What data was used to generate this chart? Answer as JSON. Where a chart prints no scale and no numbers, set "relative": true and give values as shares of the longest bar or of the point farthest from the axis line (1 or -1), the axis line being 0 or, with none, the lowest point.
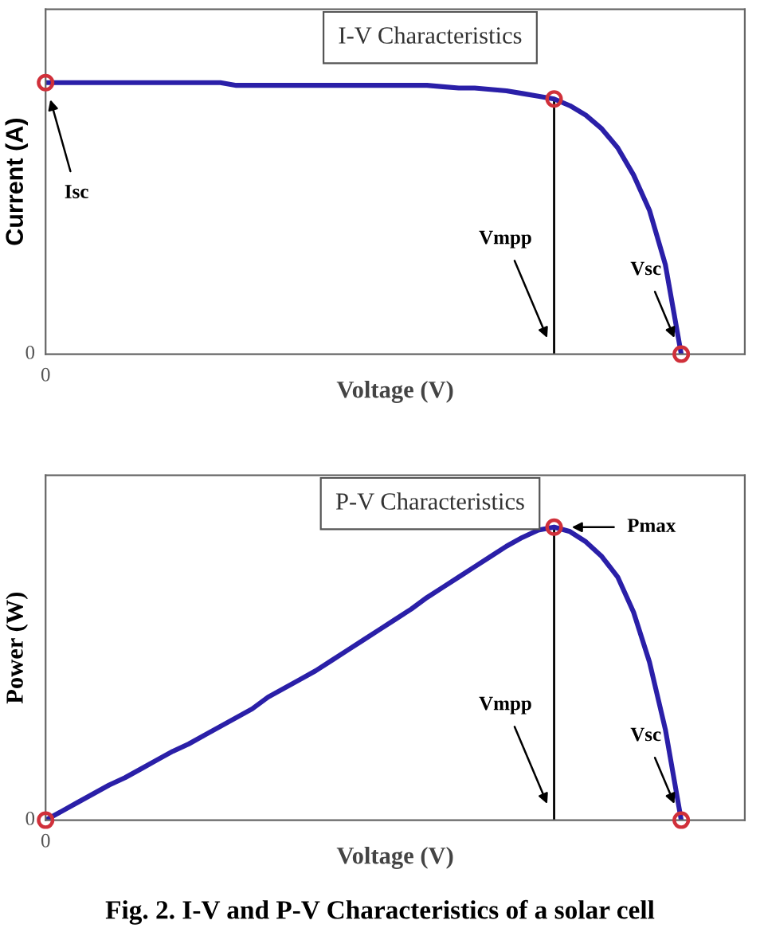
{
  "chart_data": [
    {
      "type": "line",
      "title": "I-V Characteristics",
      "xlabel": "Voltage (V)",
      "ylabel": "Current (A)",
      "relative": true,
      "categories": [
        null,
        null,
        null,
        null,
        null,
        null,
        null,
        null,
        null,
        null,
        null,
        null,
        null,
        null,
        null,
        null,
        null,
        null,
        null,
        null,
        null,
        null,
        null,
        null,
        null,
        null,
        null,
        null,
        null,
        null,
        null,
        null,
        null,
        null,
        null,
        null,
        null,
        null,
        null,
        null,
        null
      ],
      "series": [
        {
          "color": "#2a1fa8",
          "values": [
            1,
            1,
            1,
            1,
            1,
            1,
            1,
            1,
            1,
            1,
            1,
            1,
            0.99,
            0.99,
            0.99,
            0.99,
            0.99,
            0.99,
            0.99,
            0.99,
            0.99,
            0.99,
            0.99,
            0.99,
            0.99,
            0.985,
            0.98,
            0.98,
            0.975,
            0.97,
            0.96,
            0.95,
            0.94,
            0.915,
            0.88,
            0.83,
            0.76,
            0.66,
            0.53,
            0.33,
            0
          ]
        }
      ],
      "annotations": [
        "Isc",
        "Vmpp",
        "Vsc",
        "0",
        "0"
      ]
    },
    {
      "type": "line",
      "title": "P-V Characteristics",
      "xlabel": "Voltage (V)",
      "ylabel": "Power (W)",
      "relative": true,
      "categories": [
        null,
        null,
        null,
        null,
        null,
        null,
        null,
        null,
        null,
        null,
        null,
        null,
        null,
        null,
        null,
        null,
        null,
        null,
        null,
        null,
        null,
        null,
        null,
        null,
        null,
        null,
        null,
        null,
        null,
        null,
        null,
        null,
        null,
        null,
        null,
        null,
        null,
        null,
        null,
        null,
        null
      ],
      "series": [
        {
          "color": "#2a1fa8",
          "values": [
            0,
            0.03,
            0.06,
            0.09,
            0.12,
            0.145,
            0.175,
            0.205,
            0.235,
            0.26,
            0.29,
            0.32,
            0.35,
            0.38,
            0.42,
            0.45,
            0.48,
            0.51,
            0.545,
            0.58,
            0.615,
            0.65,
            0.685,
            0.72,
            0.76,
            0.795,
            0.83,
            0.865,
            0.9,
            0.935,
            0.965,
            0.99,
            1,
            0.985,
            0.95,
            0.9,
            0.83,
            0.71,
            0.54,
            0.31,
            0
          ]
        }
      ],
      "annotations": [
        "Pmax",
        "Vmpp",
        "Vsc",
        "0",
        "0",
        "Fig. 2. I-V and P-V Characteristics of a solar cell"
      ]
    }
  ]
}
